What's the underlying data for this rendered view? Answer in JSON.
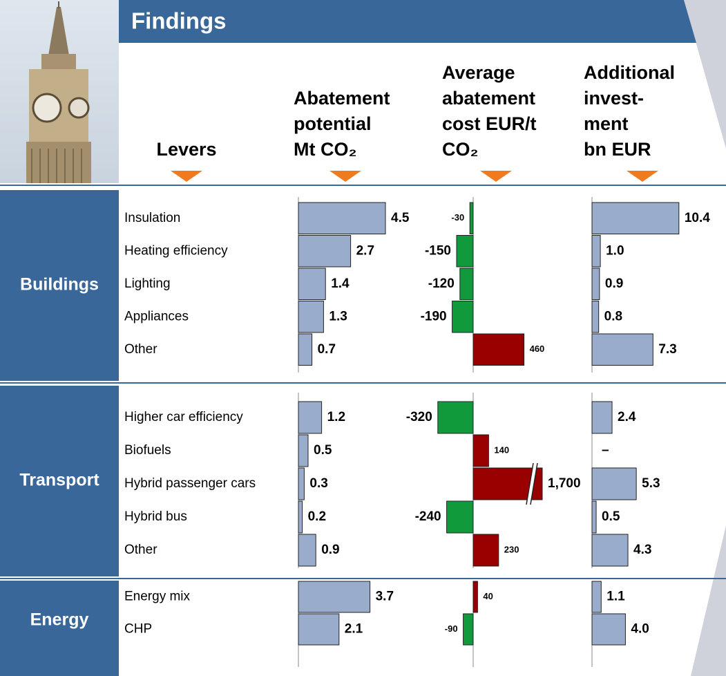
{
  "title": "Findings",
  "chart_data": {
    "type": "bar",
    "lever_header": "Levers",
    "columns": [
      {
        "name": "Abatement\npotential\nMt CO₂",
        "color": "#9aaccb"
      },
      {
        "name": "Average\nabatement\ncost EUR/t\nCO₂",
        "color": "#990000",
        "negative_color": "#119a3c"
      },
      {
        "name": "Additional\ninvest-\nment\nbn EUR",
        "color": "#9aaccb"
      }
    ],
    "groups": [
      {
        "name": "Buildings",
        "categories": [
          "Insulation",
          "Heating efficiency",
          "Lighting",
          "Appliances",
          "Other"
        ],
        "values": [
          [
            4.5,
            2.7,
            1.4,
            1.3,
            0.7
          ],
          [
            -30,
            -150,
            -120,
            -190,
            460
          ],
          [
            10.4,
            1.0,
            0.9,
            0.8,
            7.3
          ]
        ],
        "value_labels": [
          [
            "4.5",
            "2.7",
            "1.4",
            "1.3",
            "0.7"
          ],
          [
            "-30",
            "-150",
            "-120",
            "-190",
            "460"
          ],
          [
            "10.4",
            "1.0",
            "0.9",
            "0.8",
            "7.3"
          ]
        ]
      },
      {
        "name": "Transport",
        "categories": [
          "Higher car efficiency",
          "Biofuels",
          "Hybrid passenger cars",
          "Hybrid bus",
          "Other"
        ],
        "values": [
          [
            1.2,
            0.5,
            0.3,
            0.2,
            0.9
          ],
          [
            -320,
            140,
            1700,
            -240,
            230
          ],
          [
            2.4,
            null,
            5.3,
            0.5,
            4.3
          ]
        ],
        "value_labels": [
          [
            "1.2",
            "0.5",
            "0.3",
            "0.2",
            "0.9"
          ],
          [
            "-320",
            "140",
            "1,700",
            "-240",
            "230"
          ],
          [
            "2.4",
            "–",
            "5.3",
            "0.5",
            "4.3"
          ]
        ]
      },
      {
        "name": "Energy",
        "categories": [
          "Energy mix",
          "CHP"
        ],
        "values": [
          [
            3.7,
            2.1
          ],
          [
            40,
            -90
          ],
          [
            1.1,
            4.0
          ]
        ],
        "value_labels": [
          [
            "3.7",
            "2.1"
          ],
          [
            "40",
            "-90"
          ],
          [
            "1.1",
            "4.0"
          ]
        ]
      }
    ]
  }
}
